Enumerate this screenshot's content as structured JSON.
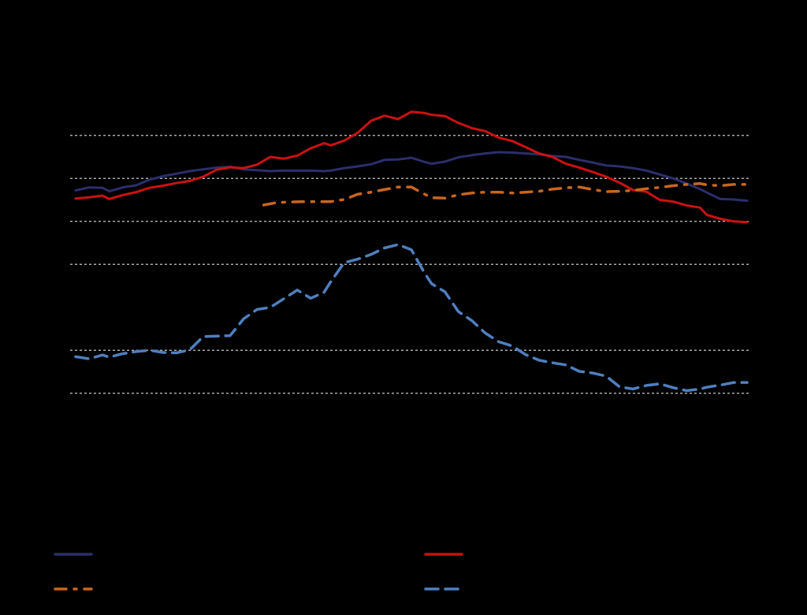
{
  "chart_data": {
    "type": "line",
    "title": "",
    "xlabel": "",
    "ylabel": "",
    "grid": true,
    "legend_placement": "bottom",
    "x_range": [
      0,
      100
    ],
    "y_range": [
      0,
      100
    ],
    "gridlines_y": [
      85,
      75,
      65,
      55,
      35,
      25
    ],
    "series": [
      {
        "name": "",
        "color": "#2b2f6b",
        "style": "solid",
        "x": [
          0,
          2,
          4,
          5,
          7,
          9,
          11,
          13,
          15,
          17,
          19,
          21,
          23,
          25,
          27,
          29,
          31,
          33,
          35,
          37,
          38,
          40,
          42,
          44,
          46,
          48,
          50,
          52,
          53,
          55,
          57,
          59,
          61,
          63,
          65,
          67,
          69,
          71,
          73,
          75,
          77,
          79,
          81,
          83,
          85,
          87,
          89,
          91,
          93,
          94,
          96,
          98,
          100
        ],
        "y": [
          72.2,
          72.9,
          72.8,
          72.0,
          72.9,
          73.4,
          74.7,
          75.5,
          76.1,
          76.7,
          77.1,
          77.5,
          77.7,
          77.1,
          76.9,
          76.7,
          76.8,
          76.8,
          76.8,
          76.7,
          76.8,
          77.4,
          77.8,
          78.3,
          79.3,
          79.4,
          79.8,
          78.8,
          78.4,
          78.9,
          79.9,
          80.4,
          80.8,
          81.1,
          81.0,
          80.8,
          80.6,
          80.2,
          80.0,
          79.3,
          78.7,
          78.0,
          77.8,
          77.4,
          76.8,
          75.9,
          75.0,
          73.8,
          72.5,
          71.7,
          70.2,
          70.1,
          69.8
        ]
      },
      {
        "name": "",
        "color": "#cc1111",
        "style": "solid",
        "x": [
          0,
          2,
          4,
          5,
          7,
          9,
          11,
          13,
          15,
          17,
          19,
          21,
          23,
          25,
          27,
          29,
          31,
          33,
          35,
          37,
          38,
          40,
          42,
          44,
          46,
          48,
          50,
          52,
          53,
          55,
          57,
          59,
          61,
          63,
          65,
          67,
          69,
          71,
          73,
          75,
          77,
          79,
          81,
          83,
          85,
          87,
          89,
          91,
          93,
          94,
          96,
          98,
          100
        ],
        "y": [
          70.3,
          70.6,
          71.0,
          70.2,
          71.1,
          71.8,
          72.8,
          73.3,
          73.9,
          74.4,
          75.4,
          77.0,
          77.6,
          77.4,
          78.2,
          80.0,
          79.6,
          80.3,
          82.0,
          83.2,
          82.7,
          83.8,
          85.6,
          88.4,
          89.6,
          88.8,
          90.5,
          90.2,
          89.8,
          89.5,
          87.9,
          86.7,
          86.0,
          84.5,
          83.7,
          82.3,
          80.8,
          80.0,
          78.4,
          77.5,
          76.5,
          75.4,
          74.0,
          72.3,
          71.9,
          70.0,
          69.6,
          68.7,
          68.2,
          66.5,
          65.6,
          65.0,
          64.8
        ]
      },
      {
        "name": "",
        "color": "#c8661e",
        "style": "dash-dot",
        "x": [
          28,
          30,
          32,
          34,
          36,
          38,
          40,
          42,
          44,
          46,
          48,
          50,
          52,
          53,
          55,
          57,
          59,
          61,
          63,
          65,
          67,
          69,
          71,
          73,
          75,
          77,
          79,
          81,
          83,
          85,
          87,
          89,
          91,
          93,
          94,
          96,
          98,
          100
        ],
        "y": [
          68.8,
          69.4,
          69.5,
          69.6,
          69.6,
          69.6,
          70.1,
          71.3,
          71.8,
          72.4,
          73.0,
          73.0,
          71.3,
          70.5,
          70.4,
          71.2,
          71.6,
          71.8,
          71.8,
          71.6,
          71.8,
          72.0,
          72.5,
          72.8,
          73.0,
          72.4,
          71.9,
          72.0,
          72.2,
          72.6,
          72.9,
          73.3,
          73.6,
          73.8,
          73.5,
          73.3,
          73.6,
          73.6
        ]
      },
      {
        "name": "",
        "color": "#4f7fbf",
        "style": "dashed",
        "x": [
          0,
          2,
          4,
          5,
          7,
          9,
          11,
          13,
          15,
          17,
          19,
          21,
          23,
          25,
          27,
          29,
          31,
          33,
          35,
          37,
          38,
          40,
          42,
          44,
          46,
          48,
          50,
          52,
          53,
          55,
          57,
          59,
          61,
          63,
          65,
          67,
          69,
          71,
          73,
          75,
          77,
          79,
          81,
          83,
          85,
          87,
          89,
          91,
          93,
          94,
          96,
          98,
          100
        ],
        "y": [
          33.5,
          33.0,
          33.9,
          33.4,
          34.2,
          34.7,
          35.0,
          34.5,
          34.4,
          35.1,
          38.2,
          38.3,
          38.4,
          42.3,
          44.5,
          45.0,
          47.0,
          49.0,
          47.1,
          48.5,
          51.0,
          55.4,
          56.2,
          57.3,
          58.8,
          59.6,
          58.4,
          52.9,
          50.5,
          48.6,
          44.0,
          41.9,
          39.0,
          37.0,
          36.0,
          34.0,
          32.7,
          32.1,
          31.6,
          30.1,
          29.7,
          29.0,
          26.5,
          26.0,
          26.8,
          27.2,
          26.3,
          25.6,
          26.0,
          26.4,
          26.9,
          27.5,
          27.5
        ]
      }
    ]
  }
}
